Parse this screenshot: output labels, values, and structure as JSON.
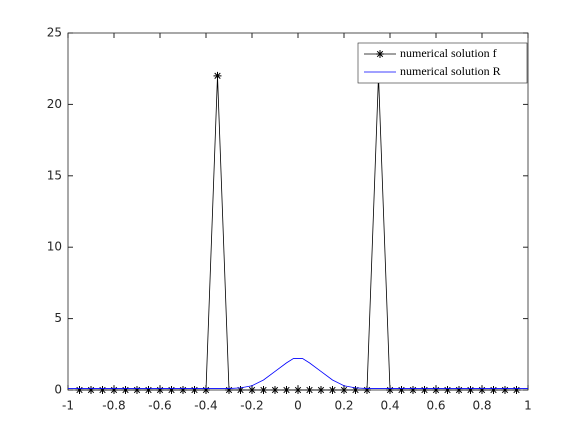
{
  "chart_data": {
    "type": "line",
    "xlim": [
      -1,
      1
    ],
    "ylim": [
      0,
      25
    ],
    "xticks": [
      -1,
      -0.8,
      -0.6,
      -0.4,
      -0.2,
      0,
      0.2,
      0.4,
      0.6,
      0.8,
      1
    ],
    "yticks": [
      0,
      5,
      10,
      15,
      20,
      25
    ],
    "grid": false,
    "legend": "upper-right",
    "series": [
      {
        "name": "numerical solution f",
        "color": "#000000",
        "marker": "star",
        "x": [
          -0.95,
          -0.9,
          -0.85,
          -0.8,
          -0.75,
          -0.7,
          -0.65,
          -0.6,
          -0.55,
          -0.5,
          -0.45,
          -0.4,
          -0.35,
          -0.3,
          -0.25,
          -0.2,
          -0.15,
          -0.1,
          -0.05,
          0,
          0.05,
          0.1,
          0.15,
          0.2,
          0.25,
          0.3,
          0.35,
          0.4,
          0.45,
          0.5,
          0.55,
          0.6,
          0.65,
          0.7,
          0.75,
          0.8,
          0.85,
          0.9,
          0.95
        ],
        "values": [
          0,
          0,
          0,
          0,
          0,
          0,
          0,
          0,
          0,
          0,
          0,
          0,
          22,
          0,
          0,
          0,
          0,
          0,
          0,
          0,
          0,
          0,
          0,
          0,
          0,
          0,
          22,
          0,
          0,
          0,
          0,
          0,
          0,
          0,
          0,
          0,
          0,
          0,
          0
        ]
      },
      {
        "name": "numerical solution R",
        "color": "#0000ff",
        "marker": "none",
        "x": [
          -1,
          -0.3,
          -0.25,
          -0.2,
          -0.15,
          -0.1,
          -0.05,
          -0.02,
          0.02,
          0.05,
          0.1,
          0.15,
          0.2,
          0.25,
          0.3,
          1
        ],
        "values": [
          0.1,
          0.1,
          0.15,
          0.3,
          0.7,
          1.3,
          1.9,
          2.2,
          2.2,
          1.9,
          1.3,
          0.7,
          0.3,
          0.15,
          0.1,
          0.1
        ]
      }
    ]
  }
}
